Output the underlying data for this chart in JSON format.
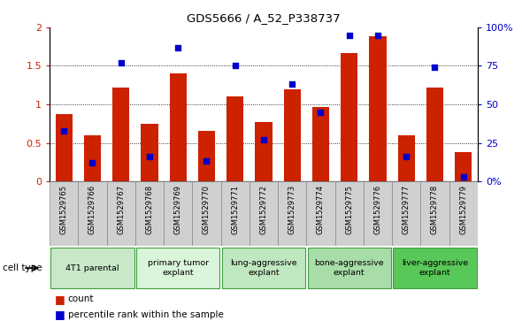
{
  "title": "GDS5666 / A_52_P338737",
  "samples": [
    "GSM1529765",
    "GSM1529766",
    "GSM1529767",
    "GSM1529768",
    "GSM1529769",
    "GSM1529770",
    "GSM1529771",
    "GSM1529772",
    "GSM1529773",
    "GSM1529774",
    "GSM1529775",
    "GSM1529776",
    "GSM1529777",
    "GSM1529778",
    "GSM1529779"
  ],
  "counts": [
    0.87,
    0.6,
    1.22,
    0.75,
    1.4,
    0.65,
    1.1,
    0.77,
    1.2,
    0.97,
    1.67,
    1.88,
    0.6,
    1.22,
    0.38
  ],
  "percentiles": [
    33,
    12,
    77,
    16,
    87,
    13,
    75,
    27,
    63,
    45,
    95,
    95,
    16,
    74,
    3
  ],
  "groups": [
    {
      "label": "4T1 parental",
      "indices": [
        0,
        1,
        2
      ],
      "color": "#c8e8c8"
    },
    {
      "label": "primary tumor\nexplant",
      "indices": [
        3,
        4,
        5
      ],
      "color": "#daf5da"
    },
    {
      "label": "lung-aggressive\nexplant",
      "indices": [
        6,
        7,
        8
      ],
      "color": "#c0e8c0"
    },
    {
      "label": "bone-aggressive\nexplant",
      "indices": [
        9,
        10,
        11
      ],
      "color": "#a8dca8"
    },
    {
      "label": "liver-aggressive\nexplant",
      "indices": [
        12,
        13,
        14
      ],
      "color": "#58c858"
    }
  ],
  "bar_color": "#cc2200",
  "dot_color": "#0000cc",
  "left_ylim": [
    0,
    2
  ],
  "right_ylim": [
    0,
    100
  ],
  "left_yticks": [
    0,
    0.5,
    1.0,
    1.5,
    2.0
  ],
  "right_yticks": [
    0,
    25,
    50,
    75,
    100
  ],
  "left_yticklabels": [
    "0",
    "0.5",
    "1",
    "1.5",
    "2"
  ],
  "right_yticklabels": [
    "0%",
    "25",
    "50",
    "75",
    "100%"
  ],
  "grid_lines": [
    0.5,
    1.0,
    1.5
  ],
  "bar_width": 0.6,
  "sample_bg_color": "#d0d0d0",
  "group_border_color": "#40a040"
}
